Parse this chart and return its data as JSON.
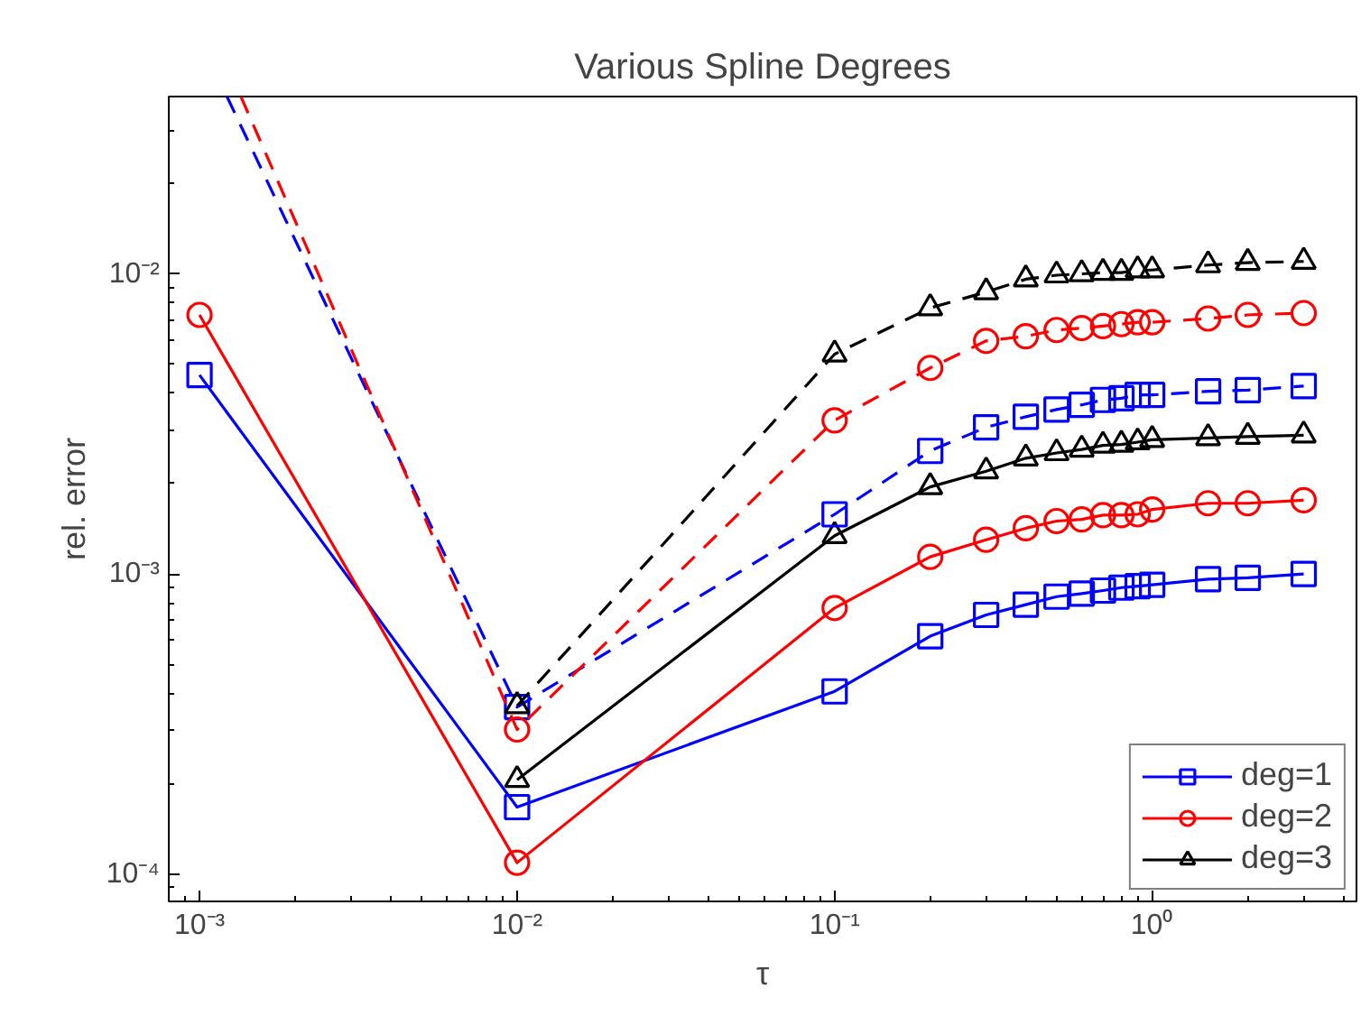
{
  "chart_data": {
    "type": "line",
    "title": "Various Spline Degrees",
    "xlabel": "τ",
    "ylabel": "rel. error",
    "log": "xy",
    "grid": false,
    "legend": "bottom right",
    "xlim": [
      0.0008,
      4.4
    ],
    "ylim": [
      8.1e-05,
      0.039
    ],
    "xticks": [
      {
        "value": 0.001,
        "label": "10⁻³"
      },
      {
        "value": 0.01,
        "label": "10⁻²"
      },
      {
        "value": 0.1,
        "label": "10⁻¹"
      },
      {
        "value": 1,
        "label": "10⁰"
      }
    ],
    "yticks": [
      {
        "value": 0.0001,
        "label": "10⁻⁴"
      },
      {
        "value": 0.001,
        "label": "10⁻³"
      },
      {
        "value": 0.01,
        "label": "10⁻²"
      }
    ],
    "series": [
      {
        "name": "deg=1",
        "color": "#0000ff",
        "marker": "square",
        "line_style": "solid",
        "x": [
          0.001,
          0.01,
          0.1,
          0.2,
          0.3,
          0.4,
          0.5,
          0.6,
          0.7,
          0.8,
          0.9,
          1.0,
          1.5,
          2,
          3
        ],
        "values": [
          0.0046,
          0.000167,
          0.000406,
          0.00062,
          0.00073,
          0.00079,
          0.00084,
          0.00086,
          0.00088,
          0.0009,
          0.00091,
          0.00092,
          0.00096,
          0.00097,
          0.001
        ]
      },
      {
        "name": "deg=2",
        "color": "#ff0000",
        "marker": "circle",
        "line_style": "solid",
        "x": [
          0.001,
          0.01,
          0.1,
          0.2,
          0.3,
          0.4,
          0.5,
          0.6,
          0.7,
          0.8,
          0.9,
          1.0,
          1.5,
          2,
          3
        ],
        "values": [
          0.0073,
          0.000109,
          0.00077,
          0.00114,
          0.0013,
          0.00142,
          0.0015,
          0.00152,
          0.00157,
          0.00157,
          0.00158,
          0.00164,
          0.00172,
          0.00172,
          0.00176
        ]
      },
      {
        "name": "deg=3",
        "color": "#000000",
        "marker": "triangle",
        "line_style": "solid",
        "x": [
          0.01,
          0.1,
          0.2,
          0.3,
          0.4,
          0.5,
          0.6,
          0.7,
          0.8,
          0.9,
          1.0,
          1.5,
          2,
          3
        ],
        "values": [
          0.000206,
          0.00134,
          0.00195,
          0.0022,
          0.00243,
          0.00253,
          0.0026,
          0.00268,
          0.0027,
          0.00275,
          0.0028,
          0.00284,
          0.00287,
          0.0029
        ]
      },
      {
        "color": "#0000ff",
        "marker": "square",
        "line_style": "dashed",
        "x": [
          0.00122,
          0.01,
          0.1,
          0.2,
          0.3,
          0.4,
          0.5,
          0.6,
          0.7,
          0.8,
          0.9,
          1.0,
          1.5,
          2,
          3
        ],
        "values": [
          0.039,
          0.00036,
          0.00158,
          0.00257,
          0.00308,
          0.00334,
          0.00353,
          0.00366,
          0.0038,
          0.00385,
          0.00395,
          0.00395,
          0.00406,
          0.0041,
          0.00423
        ]
      },
      {
        "color": "#ff0000",
        "marker": "circle",
        "line_style": "dashed",
        "x": [
          0.00135,
          0.01,
          0.1,
          0.2,
          0.3,
          0.4,
          0.5,
          0.6,
          0.7,
          0.8,
          0.9,
          1.0,
          1.5,
          2,
          3
        ],
        "values": [
          0.039,
          0.000303,
          0.00325,
          0.00486,
          0.00598,
          0.0062,
          0.0065,
          0.0066,
          0.0067,
          0.0068,
          0.0069,
          0.0069,
          0.0071,
          0.0073,
          0.0074
        ]
      },
      {
        "color": "#000000",
        "marker": "triangle",
        "line_style": "dashed",
        "x": [
          0.01,
          0.1,
          0.2,
          0.3,
          0.4,
          0.5,
          0.6,
          0.7,
          0.8,
          0.9,
          1.0,
          1.5,
          2,
          3
        ],
        "values": [
          0.000363,
          0.0054,
          0.0077,
          0.0087,
          0.0096,
          0.0099,
          0.01,
          0.0101,
          0.0101,
          0.0103,
          0.0103,
          0.0107,
          0.0109,
          0.011
        ]
      }
    ]
  }
}
